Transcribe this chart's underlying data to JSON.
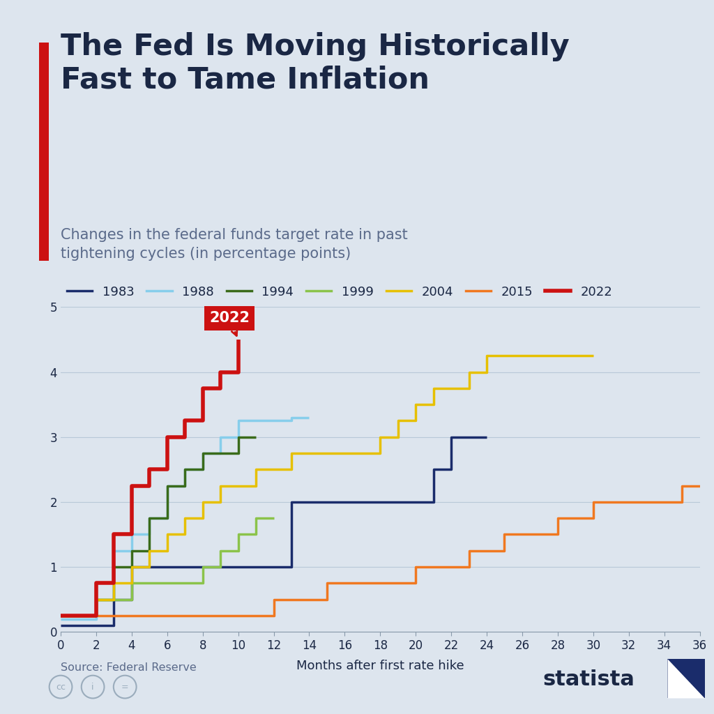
{
  "title": "The Fed Is Moving Historically\nFast to Tame Inflation",
  "subtitle": "Changes in the federal funds target rate in past\ntightening cycles (in percentage points)",
  "xlabel": "Months after first rate hike",
  "background_color": "#dde5ee",
  "title_color": "#1a2744",
  "subtitle_color": "#5a6a8a",
  "accent_color": "#cc2222",
  "series": {
    "1983": {
      "color": "#1a2c6b",
      "x": [
        0,
        2,
        3,
        4,
        5,
        6,
        7,
        8,
        9,
        10,
        11,
        12,
        13,
        14,
        15,
        16,
        17,
        18,
        19,
        20,
        21,
        22,
        23,
        24
      ],
      "y": [
        0.1,
        0.1,
        0.5,
        1.0,
        1.0,
        1.0,
        1.0,
        1.0,
        1.0,
        1.0,
        1.0,
        1.0,
        2.0,
        2.0,
        2.0,
        2.0,
        2.0,
        2.0,
        2.0,
        2.0,
        2.5,
        3.0,
        3.0,
        3.0
      ]
    },
    "1988": {
      "color": "#87CEEB",
      "x": [
        0,
        1,
        2,
        3,
        4,
        5,
        6,
        7,
        8,
        9,
        10,
        11,
        12,
        13,
        14
      ],
      "y": [
        0.2,
        0.2,
        0.5,
        1.25,
        1.5,
        1.75,
        2.25,
        2.5,
        2.75,
        3.0,
        3.25,
        3.25,
        3.25,
        3.3,
        3.3
      ]
    },
    "1994": {
      "color": "#3a6b1a",
      "x": [
        0,
        1,
        2,
        3,
        4,
        5,
        6,
        7,
        8,
        9,
        10,
        11
      ],
      "y": [
        0.25,
        0.25,
        0.5,
        1.0,
        1.25,
        1.75,
        2.25,
        2.5,
        2.75,
        2.75,
        3.0,
        3.0
      ]
    },
    "1999": {
      "color": "#8bc34a",
      "x": [
        0,
        1,
        2,
        3,
        4,
        5,
        6,
        7,
        8,
        9,
        10,
        11,
        12
      ],
      "y": [
        0.25,
        0.25,
        0.5,
        0.5,
        0.75,
        0.75,
        0.75,
        0.75,
        1.0,
        1.25,
        1.5,
        1.75,
        1.75
      ]
    },
    "2004": {
      "color": "#e6c000",
      "x": [
        0,
        1,
        2,
        3,
        4,
        5,
        6,
        7,
        8,
        9,
        10,
        11,
        12,
        13,
        14,
        15,
        16,
        17,
        18,
        19,
        20,
        21,
        22,
        23,
        24,
        25,
        26,
        27,
        28,
        29,
        30
      ],
      "y": [
        0.25,
        0.25,
        0.5,
        0.75,
        1.0,
        1.25,
        1.5,
        1.75,
        2.0,
        2.25,
        2.25,
        2.5,
        2.5,
        2.75,
        2.75,
        2.75,
        2.75,
        2.75,
        3.0,
        3.25,
        3.5,
        3.75,
        3.75,
        4.0,
        4.25,
        4.25,
        4.25,
        4.25,
        4.25,
        4.25,
        4.25
      ]
    },
    "2015": {
      "color": "#f07820",
      "x": [
        0,
        1,
        2,
        3,
        4,
        5,
        6,
        7,
        8,
        9,
        10,
        11,
        12,
        13,
        14,
        15,
        16,
        17,
        18,
        19,
        20,
        21,
        22,
        23,
        24,
        25,
        26,
        27,
        28,
        29,
        30,
        31,
        32,
        33,
        34,
        35,
        36
      ],
      "y": [
        0.25,
        0.25,
        0.25,
        0.25,
        0.25,
        0.25,
        0.25,
        0.25,
        0.25,
        0.25,
        0.25,
        0.25,
        0.5,
        0.5,
        0.5,
        0.75,
        0.75,
        0.75,
        0.75,
        0.75,
        1.0,
        1.0,
        1.0,
        1.25,
        1.25,
        1.5,
        1.5,
        1.5,
        1.75,
        1.75,
        2.0,
        2.0,
        2.0,
        2.0,
        2.0,
        2.25,
        2.25
      ]
    },
    "2022": {
      "color": "#cc1111",
      "x": [
        0,
        1,
        2,
        3,
        4,
        5,
        6,
        7,
        8,
        9,
        10
      ],
      "y": [
        0.25,
        0.25,
        0.75,
        1.5,
        2.25,
        2.5,
        3.0,
        3.25,
        3.75,
        4.0,
        4.5
      ]
    }
  },
  "ylim": [
    0,
    5
  ],
  "xlim": [
    0,
    36
  ],
  "yticks": [
    0,
    1,
    2,
    3,
    4,
    5
  ],
  "xticks": [
    0,
    2,
    4,
    6,
    8,
    10,
    12,
    14,
    16,
    18,
    20,
    22,
    24,
    26,
    28,
    30,
    32,
    34,
    36
  ],
  "legend_order": [
    "1983",
    "1988",
    "1994",
    "1999",
    "2004",
    "2015",
    "2022"
  ]
}
